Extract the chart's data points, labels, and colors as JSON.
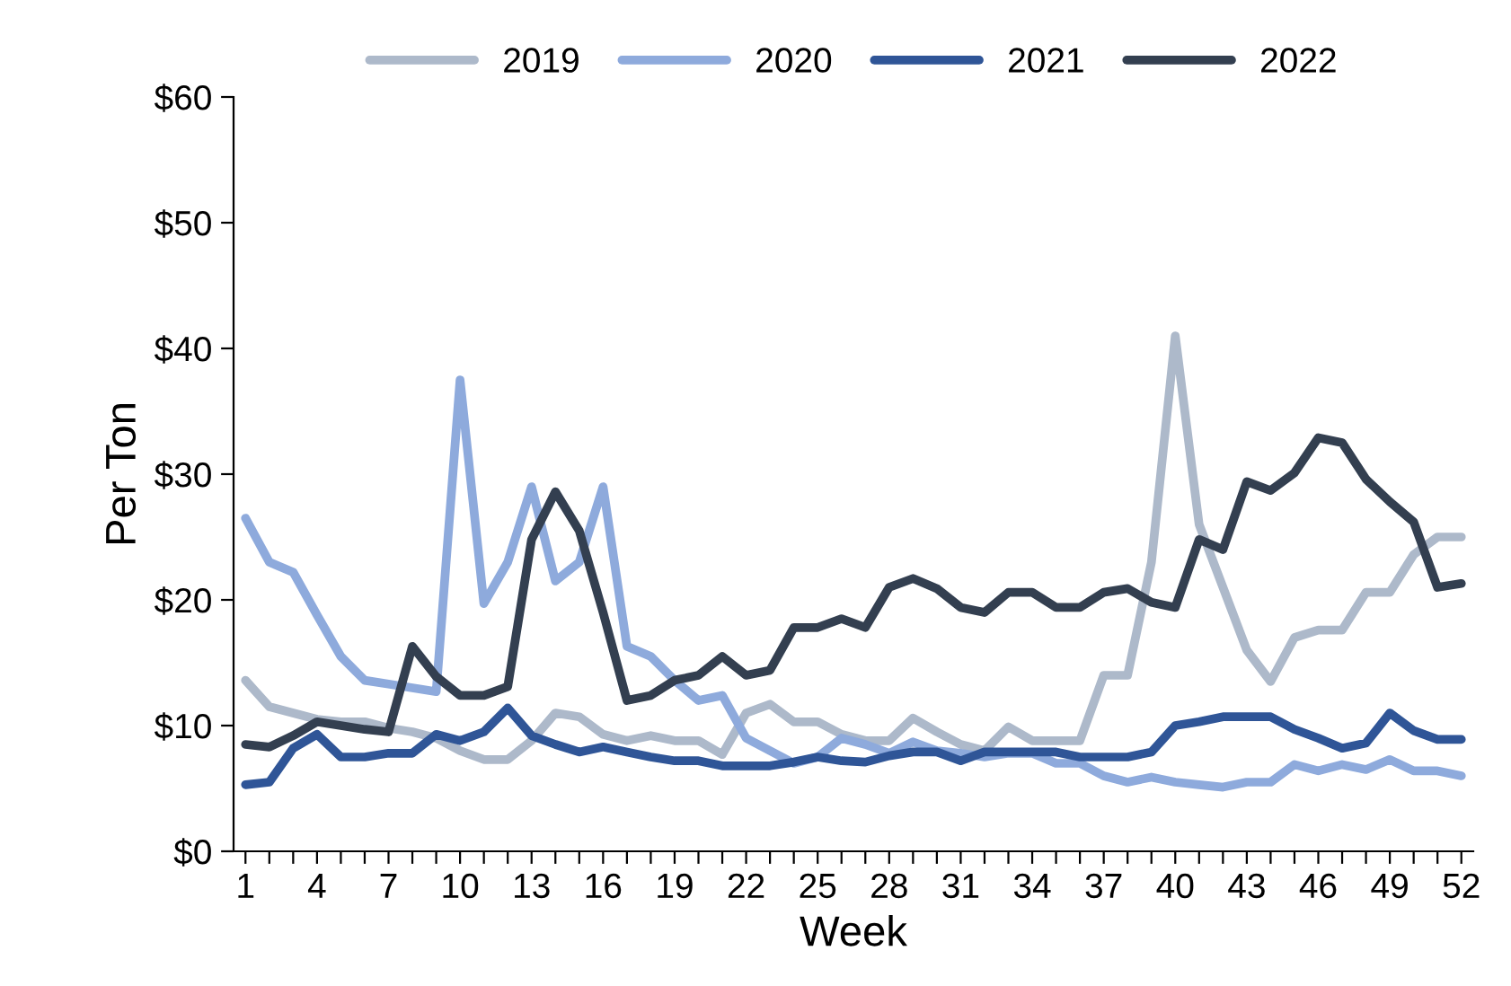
{
  "chart_data": {
    "type": "line",
    "xlabel": "Week",
    "ylabel": "Per Ton",
    "legend": "top",
    "grid": false,
    "line_style": "solid",
    "marker": "none",
    "x": [
      1,
      2,
      3,
      4,
      5,
      6,
      7,
      8,
      9,
      10,
      11,
      12,
      13,
      14,
      15,
      16,
      17,
      18,
      19,
      20,
      21,
      22,
      23,
      24,
      25,
      26,
      27,
      28,
      29,
      30,
      31,
      32,
      33,
      34,
      35,
      36,
      37,
      38,
      39,
      40,
      41,
      42,
      43,
      44,
      45,
      46,
      47,
      48,
      49,
      50,
      51,
      52
    ],
    "xlim": [
      0.5,
      52.5
    ],
    "xticks": [
      1,
      {
        "value": 2,
        "label": null
      },
      {
        "value": 3,
        "label": null
      },
      4,
      {
        "value": 5,
        "label": null
      },
      {
        "value": 6,
        "label": null
      },
      7,
      {
        "value": 8,
        "label": null
      },
      {
        "value": 9,
        "label": null
      },
      10,
      {
        "value": 11,
        "label": null
      },
      {
        "value": 12,
        "label": null
      },
      13,
      {
        "value": 14,
        "label": null
      },
      {
        "value": 15,
        "label": null
      },
      16,
      {
        "value": 17,
        "label": null
      },
      {
        "value": 18,
        "label": null
      },
      19,
      {
        "value": 20,
        "label": null
      },
      {
        "value": 21,
        "label": null
      },
      22,
      {
        "value": 23,
        "label": null
      },
      {
        "value": 24,
        "label": null
      },
      25,
      {
        "value": 26,
        "label": null
      },
      {
        "value": 27,
        "label": null
      },
      28,
      {
        "value": 29,
        "label": null
      },
      {
        "value": 30,
        "label": null
      },
      31,
      {
        "value": 32,
        "label": null
      },
      {
        "value": 33,
        "label": null
      },
      34,
      {
        "value": 35,
        "label": null
      },
      {
        "value": 36,
        "label": null
      },
      37,
      {
        "value": 38,
        "label": null
      },
      {
        "value": 39,
        "label": null
      },
      40,
      {
        "value": 41,
        "label": null
      },
      {
        "value": 42,
        "label": null
      },
      43,
      {
        "value": 44,
        "label": null
      },
      {
        "value": 45,
        "label": null
      },
      46,
      {
        "value": 47,
        "label": null
      },
      {
        "value": 48,
        "label": null
      },
      49,
      {
        "value": 50,
        "label": null
      },
      {
        "value": 51,
        "label": null
      },
      52
    ],
    "ylim": [
      0,
      60
    ],
    "yticks": [
      {
        "value": 0,
        "label": "$0"
      },
      {
        "value": 10,
        "label": "$10"
      },
      {
        "value": 20,
        "label": "$20"
      },
      {
        "value": 30,
        "label": "$30"
      },
      {
        "value": 40,
        "label": "$40"
      },
      {
        "value": 50,
        "label": "$50"
      },
      {
        "value": 60,
        "label": "$60"
      }
    ],
    "series": [
      {
        "name": "2019",
        "color": "#adb9ca",
        "values": [
          13.6,
          11.5,
          11,
          10.5,
          10.3,
          10.3,
          9.8,
          9.5,
          9,
          8,
          7.3,
          7.3,
          8.8,
          11,
          10.7,
          9.3,
          8.8,
          9.2,
          8.8,
          8.8,
          7.7,
          11,
          11.7,
          10.3,
          10.3,
          9.3,
          8.8,
          8.8,
          10.6,
          9.5,
          8.5,
          8,
          9.9,
          8.8,
          8.8,
          8.8,
          14,
          14,
          23,
          41,
          26,
          21,
          16,
          13.5,
          17,
          17.6,
          17.6,
          20.6,
          20.6,
          23.6,
          25,
          25
        ]
      },
      {
        "name": "2020",
        "color": "#8eaadc",
        "values": [
          26.5,
          23,
          22.2,
          18.8,
          15.5,
          13.6,
          13.3,
          13,
          12.7,
          37.5,
          19.7,
          23,
          29,
          21.5,
          23,
          29,
          16.3,
          15.5,
          13.6,
          12,
          12.4,
          9,
          8,
          7,
          7.5,
          9,
          8.5,
          7.8,
          8.7,
          8,
          7.8,
          7.5,
          7.8,
          7.8,
          7,
          7,
          6,
          5.5,
          5.9,
          5.5,
          5.3,
          5.1,
          5.5,
          5.5,
          6.9,
          6.4,
          6.9,
          6.5,
          7.3,
          6.4,
          6.4,
          6
        ]
      },
      {
        "name": "2021",
        "color": "#2f5597",
        "values": [
          5.3,
          5.5,
          8.2,
          9.3,
          7.5,
          7.5,
          7.8,
          7.8,
          9.3,
          8.8,
          9.5,
          11.4,
          9.2,
          8.5,
          7.9,
          8.3,
          7.9,
          7.5,
          7.2,
          7.2,
          6.8,
          6.8,
          6.8,
          7.1,
          7.5,
          7.2,
          7.1,
          7.6,
          7.9,
          7.9,
          7.2,
          7.9,
          7.9,
          7.9,
          7.9,
          7.5,
          7.5,
          7.5,
          7.9,
          10,
          10.3,
          10.7,
          10.7,
          10.7,
          9.7,
          9,
          8.2,
          8.6,
          11,
          9.6,
          8.9,
          8.9
        ]
      },
      {
        "name": "2022",
        "color": "#333f50",
        "values": [
          8.5,
          8.3,
          9.2,
          10.3,
          10,
          9.7,
          9.5,
          16.3,
          13.9,
          12.4,
          12.4,
          13.1,
          24.8,
          28.6,
          25.5,
          19,
          12,
          12.4,
          13.6,
          14,
          15.5,
          14,
          14.4,
          17.8,
          17.8,
          18.5,
          17.8,
          21,
          21.7,
          20.9,
          19.4,
          19,
          20.6,
          20.6,
          19.4,
          19.4,
          20.6,
          20.9,
          19.8,
          19.4,
          24.8,
          24,
          29.4,
          28.7,
          30.1,
          32.9,
          32.5,
          29.6,
          27.8,
          26.2,
          21,
          21.3
        ]
      }
    ]
  }
}
